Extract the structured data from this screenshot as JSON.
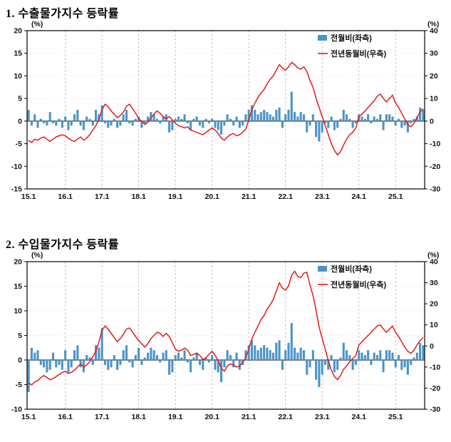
{
  "page": {
    "background": "#ffffff"
  },
  "colors": {
    "bar": "#4a94c9",
    "line": "#e4191c",
    "grid": "#aaaaaa",
    "hgrid": "#d9d9d9",
    "frame": "#000000",
    "text": "#111111"
  },
  "chart_data": [
    {
      "type": "bar+line",
      "title": "1. 수출물가지수 등락률",
      "legend_position": "top-right",
      "grid": true,
      "left_axis": {
        "label": "(%)",
        "min": -15,
        "max": 20,
        "ticks": [
          20,
          15,
          10,
          5,
          0,
          -5,
          -10,
          -15
        ]
      },
      "right_axis": {
        "label": "(%)",
        "min": -30,
        "max": 40,
        "ticks": [
          40,
          30,
          20,
          10,
          0,
          -10,
          -20,
          -30
        ]
      },
      "x_ticks": [
        {
          "m": 0,
          "label": "15.1"
        },
        {
          "m": 12,
          "label": "16.1"
        },
        {
          "m": 24,
          "label": "17.1"
        },
        {
          "m": 36,
          "label": "18.1"
        },
        {
          "m": 48,
          "label": "19.1"
        },
        {
          "m": 60,
          "label": "20.1"
        },
        {
          "m": 72,
          "label": "21.1"
        },
        {
          "m": 84,
          "label": "22.1"
        },
        {
          "m": 96,
          "label": "23.1"
        },
        {
          "m": 108,
          "label": "24.1"
        },
        {
          "m": 120,
          "label": "25.1"
        }
      ],
      "legend": [
        {
          "label": "전월비(좌측)",
          "type": "bar"
        },
        {
          "label": "전년동월비(우측)",
          "type": "line"
        }
      ],
      "series": [
        {
          "name": "전월비(좌측)",
          "type": "bar",
          "axis": "left",
          "values": [
            2.5,
            -1.0,
            1.5,
            -1.5,
            0.5,
            -0.5,
            -1.0,
            2.0,
            -0.5,
            -1.0,
            0.5,
            -1.5,
            1.0,
            -2.0,
            -1.0,
            1.5,
            2.5,
            -1.0,
            -2.0,
            1.0,
            0.5,
            -1.0,
            2.5,
            1.5,
            3.5,
            -0.5,
            -1.5,
            -1.0,
            0.5,
            -1.5,
            -1.0,
            1.5,
            2.5,
            -0.5,
            -1.0,
            0.5,
            1.0,
            -1.5,
            -0.5,
            1.0,
            2.0,
            1.5,
            0.5,
            -0.5,
            1.0,
            1.5,
            -2.5,
            -2.0,
            0.5,
            1.0,
            0.5,
            1.5,
            -0.5,
            -2.0,
            0.5,
            1.0,
            -1.0,
            -1.5,
            0.5,
            -0.5,
            0.5,
            -1.5,
            -2.0,
            -3.0,
            -1.0,
            1.5,
            0.5,
            -1.0,
            1.0,
            -1.5,
            -1.0,
            1.5,
            2.5,
            3.5,
            2.5,
            1.5,
            2.0,
            2.5,
            2.0,
            1.5,
            1.0,
            2.5,
            3.0,
            -1.5,
            1.5,
            2.5,
            6.5,
            2.0,
            1.0,
            2.0,
            1.5,
            -2.5,
            -1.0,
            1.5,
            -3.5,
            -4.5,
            -2.5,
            -0.5,
            -1.5,
            1.0,
            -2.0,
            -1.5,
            0.5,
            2.5,
            1.5,
            0.5,
            -1.5,
            -0.5,
            1.5,
            1.0,
            0.5,
            1.5,
            -0.5,
            1.0,
            0.5,
            1.5,
            -2.0,
            1.5,
            1.5,
            1.0,
            -1.0,
            0.5,
            -1.5,
            -1.0,
            -2.5,
            -0.5,
            0.5,
            1.0,
            3.0,
            2.5
          ]
        },
        {
          "name": "전년동월비(우측)",
          "type": "line",
          "axis": "right",
          "values": [
            -8.5,
            -9.5,
            -8.0,
            -8.5,
            -7.5,
            -7.0,
            -8.0,
            -9.0,
            -8.0,
            -7.0,
            -6.5,
            -6.0,
            -6.5,
            -7.5,
            -8.5,
            -9.0,
            -8.0,
            -7.0,
            -8.5,
            -7.5,
            -6.0,
            -4.0,
            -2.0,
            1.0,
            5.0,
            7.5,
            6.5,
            4.5,
            3.0,
            1.5,
            2.5,
            4.0,
            6.5,
            7.5,
            5.5,
            3.5,
            1.0,
            0.0,
            -1.5,
            -0.5,
            1.5,
            3.0,
            4.5,
            3.5,
            2.0,
            1.0,
            2.0,
            0.5,
            -1.0,
            -2.0,
            -2.5,
            -3.0,
            -2.5,
            -4.0,
            -4.5,
            -5.0,
            -5.5,
            -6.0,
            -5.0,
            -4.0,
            -3.0,
            -4.0,
            -5.5,
            -7.5,
            -8.5,
            -7.0,
            -6.0,
            -5.5,
            -6.5,
            -6.0,
            -5.0,
            -3.5,
            0.5,
            5.0,
            8.0,
            10.5,
            12.5,
            14.0,
            16.5,
            18.5,
            20.0,
            22.5,
            25.0,
            23.5,
            22.5,
            24.0,
            26.0,
            25.0,
            23.5,
            23.0,
            24.0,
            22.0,
            18.0,
            15.0,
            10.0,
            6.0,
            2.0,
            -2.0,
            -6.0,
            -10.0,
            -13.0,
            -15.0,
            -13.5,
            -10.5,
            -8.0,
            -6.0,
            -5.0,
            -3.0,
            2.0,
            3.0,
            4.5,
            6.0,
            7.5,
            9.0,
            11.0,
            12.0,
            10.0,
            8.5,
            10.0,
            11.5,
            8.0,
            6.0,
            3.5,
            1.0,
            -1.5,
            -2.5,
            -1.0,
            1.5,
            4.0,
            5.5
          ]
        }
      ]
    },
    {
      "type": "bar+line",
      "title": "2. 수입물가지수 등락률",
      "legend_position": "top-right",
      "grid": true,
      "left_axis": {
        "label": "(%)",
        "min": -10,
        "max": 20,
        "ticks": [
          20,
          15,
          10,
          5,
          0,
          -5,
          -10
        ]
      },
      "right_axis": {
        "label": "(%)",
        "min": -30,
        "max": 40,
        "ticks": [
          40,
          30,
          20,
          10,
          0,
          -10,
          -20,
          -30
        ]
      },
      "x_ticks": [
        {
          "m": 0,
          "label": "15.1"
        },
        {
          "m": 12,
          "label": "16.1"
        },
        {
          "m": 24,
          "label": "17.1"
        },
        {
          "m": 36,
          "label": "18.1"
        },
        {
          "m": 48,
          "label": "19.1"
        },
        {
          "m": 60,
          "label": "20.1"
        },
        {
          "m": 72,
          "label": "21.1"
        },
        {
          "m": 84,
          "label": "22.1"
        },
        {
          "m": 96,
          "label": "23.1"
        },
        {
          "m": 108,
          "label": "24.1"
        },
        {
          "m": 120,
          "label": "25.1"
        }
      ],
      "legend": [
        {
          "label": "전월비(좌측)",
          "type": "bar"
        },
        {
          "label": "전년동월비(우측)",
          "type": "line"
        }
      ],
      "series": [
        {
          "name": "전월비(좌측)",
          "type": "bar",
          "axis": "left",
          "values": [
            -6.5,
            2.5,
            1.5,
            2.0,
            -1.0,
            -1.5,
            -2.5,
            -2.0,
            1.5,
            -1.5,
            -1.0,
            -2.0,
            2.0,
            -2.5,
            -1.5,
            2.0,
            3.0,
            -1.5,
            -2.5,
            1.0,
            0.5,
            -1.0,
            3.0,
            2.5,
            6.5,
            -1.0,
            -2.0,
            -1.5,
            1.0,
            -2.0,
            -1.0,
            2.0,
            3.0,
            -0.5,
            -1.5,
            1.0,
            2.5,
            -1.0,
            0.5,
            1.5,
            2.5,
            2.0,
            1.0,
            -0.5,
            1.5,
            2.0,
            -3.0,
            -2.5,
            1.0,
            1.5,
            0.5,
            2.0,
            -0.5,
            -2.5,
            0.5,
            1.5,
            -1.0,
            -2.0,
            0.5,
            -0.5,
            1.0,
            -2.0,
            -2.5,
            -4.5,
            -1.5,
            2.0,
            1.0,
            -1.5,
            1.5,
            -2.0,
            -1.0,
            2.0,
            3.0,
            4.0,
            3.0,
            2.0,
            2.5,
            3.0,
            2.5,
            2.0,
            1.5,
            3.5,
            4.0,
            -2.0,
            2.0,
            3.5,
            7.5,
            2.5,
            1.5,
            2.5,
            2.0,
            -3.0,
            -1.5,
            2.0,
            -4.0,
            -5.5,
            -3.0,
            -1.0,
            -2.0,
            1.0,
            -2.5,
            -2.0,
            0.5,
            3.5,
            2.0,
            1.0,
            -2.0,
            -1.0,
            2.0,
            1.5,
            1.0,
            2.0,
            -1.0,
            1.5,
            1.0,
            2.0,
            -2.5,
            2.0,
            2.0,
            1.5,
            -1.5,
            1.0,
            -2.0,
            -1.5,
            -3.0,
            -1.0,
            0.5,
            1.5,
            3.5,
            3.0
          ]
        },
        {
          "name": "전년동월비(우측)",
          "type": "line",
          "axis": "right",
          "values": [
            -17.5,
            -18.5,
            -17.0,
            -16.5,
            -15.0,
            -14.0,
            -15.0,
            -16.0,
            -15.5,
            -14.5,
            -13.5,
            -12.5,
            -12.0,
            -13.0,
            -12.5,
            -11.5,
            -10.0,
            -8.5,
            -10.0,
            -9.0,
            -7.5,
            -5.0,
            -2.5,
            2.0,
            7.5,
            9.5,
            8.0,
            6.0,
            4.0,
            2.0,
            3.5,
            5.5,
            8.0,
            8.5,
            6.5,
            4.5,
            2.5,
            1.0,
            -0.5,
            1.0,
            3.5,
            5.0,
            6.5,
            6.0,
            4.5,
            6.0,
            4.5,
            1.5,
            -1.5,
            -2.5,
            -2.0,
            -1.0,
            -2.0,
            -4.5,
            -4.0,
            -3.5,
            -4.5,
            -6.5,
            -5.5,
            -4.0,
            -2.5,
            -4.5,
            -7.0,
            -10.5,
            -12.0,
            -9.5,
            -8.5,
            -9.0,
            -10.0,
            -9.5,
            -8.0,
            -5.5,
            -1.5,
            3.5,
            6.5,
            9.5,
            12.5,
            14.5,
            17.5,
            19.5,
            22.0,
            26.0,
            30.0,
            27.5,
            26.5,
            28.5,
            33.5,
            35.5,
            33.0,
            32.5,
            34.5,
            35.0,
            29.0,
            24.0,
            17.0,
            9.0,
            3.5,
            -1.5,
            -7.0,
            -11.5,
            -14.5,
            -16.0,
            -14.0,
            -11.0,
            -9.5,
            -7.5,
            -6.0,
            -4.5,
            0.5,
            2.0,
            3.5,
            5.0,
            6.5,
            8.0,
            9.5,
            10.0,
            8.0,
            6.5,
            8.0,
            9.5,
            6.5,
            4.5,
            2.0,
            -0.5,
            -2.5,
            -3.5,
            -2.0,
            0.5,
            2.5,
            4.0
          ]
        }
      ]
    }
  ]
}
